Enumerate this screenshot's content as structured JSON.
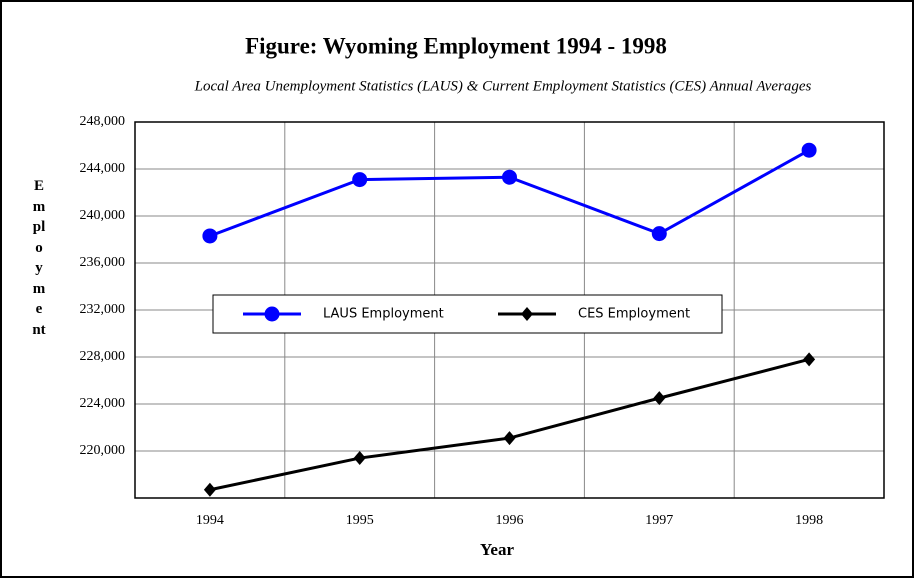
{
  "chart_data": {
    "type": "line",
    "title": "Figure:  Wyoming Employment 1994 - 1998",
    "subtitle": "Local Area Unemployment Statistics (LAUS) & Current Employment Statistics (CES) Annual Averages",
    "x_label": "Year",
    "y_label": "Employment",
    "categories": [
      "1994",
      "1995",
      "1996",
      "1997",
      "1998"
    ],
    "series": [
      {
        "name": "LAUS Employment",
        "color": "#0000ff",
        "marker": "circle",
        "values": [
          238300,
          243100,
          243300,
          238500,
          245600
        ]
      },
      {
        "name": "CES Employment",
        "color": "#000000",
        "marker": "diamond",
        "values": [
          216700,
          219400,
          221100,
          224500,
          227800
        ]
      }
    ],
    "ylim": [
      216000,
      248000
    ],
    "yticks": [
      {
        "value": 220000,
        "label": "220,000"
      },
      {
        "value": 224000,
        "label": "224,000"
      },
      {
        "value": 228000,
        "label": "228,000"
      },
      {
        "value": 232000,
        "label": "232,000"
      },
      {
        "value": 236000,
        "label": "236,000"
      },
      {
        "value": 240000,
        "label": "240,000"
      },
      {
        "value": 244000,
        "label": "244,000"
      },
      {
        "value": 248000,
        "label": "248,000"
      }
    ],
    "grid": true,
    "legend": "center"
  }
}
